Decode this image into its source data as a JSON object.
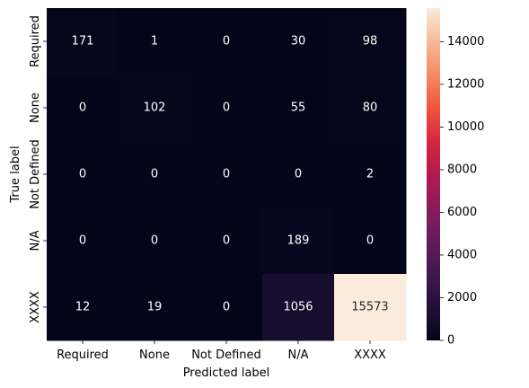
{
  "chart_data": {
    "type": "heatmap",
    "title": "",
    "xlabel": "Predicted label",
    "ylabel": "True label",
    "x_categories": [
      "Required",
      "None",
      "Not Defined",
      "N/A",
      "XXXX"
    ],
    "y_categories": [
      "Required",
      "None",
      "Not Defined",
      "N/A",
      "XXXX"
    ],
    "values": [
      [
        171,
        1,
        0,
        30,
        98
      ],
      [
        0,
        102,
        0,
        55,
        80
      ],
      [
        0,
        0,
        0,
        0,
        2
      ],
      [
        0,
        0,
        0,
        189,
        0
      ],
      [
        12,
        19,
        0,
        1056,
        15573
      ]
    ],
    "colorbar": {
      "min": 0,
      "max": 15573,
      "ticks": [
        0,
        2000,
        4000,
        6000,
        8000,
        10000,
        12000,
        14000
      ],
      "colormap": "rocket"
    },
    "grid": false
  }
}
